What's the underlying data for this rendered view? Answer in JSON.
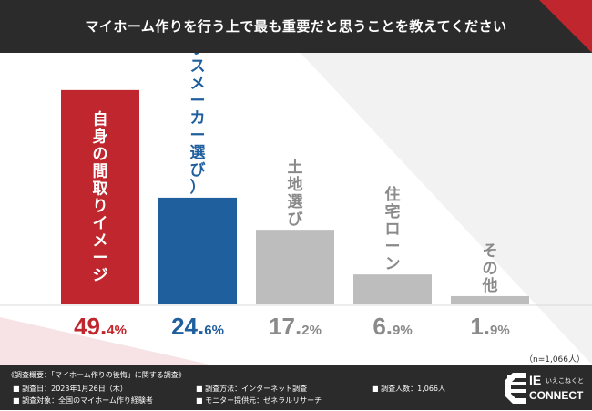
{
  "header": {
    "title": "マイホーム作りを行う上で最も重要だと思うことを教えてください"
  },
  "chart_data": {
    "type": "bar",
    "categories": [
      "自身の間取りイメージ",
      "営業マン（ハウスメーカー選び）",
      "土地選び",
      "住宅ローン",
      "その他"
    ],
    "values": [
      49.4,
      24.6,
      17.2,
      6.9,
      1.9
    ],
    "value_labels": [
      {
        "main": "49.",
        "dec": "4%"
      },
      {
        "main": "24.",
        "dec": "6%"
      },
      {
        "main": "17.",
        "dec": "2%"
      },
      {
        "main": "6.",
        "dec": "9%"
      },
      {
        "main": "1.",
        "dec": "9%"
      }
    ],
    "colors": [
      "#c0262d",
      "#1f5f9e",
      "#bdbdbd",
      "#bdbdbd",
      "#bdbdbd"
    ],
    "label_colors": [
      "#c0262d",
      "#1f5f9e",
      "#8a8a8a",
      "#8a8a8a",
      "#8a8a8a"
    ],
    "ylim": [
      0,
      50
    ]
  },
  "note": "（n=1,066人）",
  "footer": {
    "title": "《調査概要：「マイホーム作りの後悔」に関する調査》",
    "date": "■ 調査日：2023年1月26日（木）",
    "target": "■ 調査対象：全国のマイホーム作り経験者",
    "method": "■ 調査方法：インターネット調査",
    "provider": "■ モニター提供元：ゼネラルリサーチ",
    "count": "■ 調査人数：1,066人"
  },
  "logo": {
    "brand": "IE",
    "sub": "いえこねくと",
    "name": "CONNECT"
  }
}
